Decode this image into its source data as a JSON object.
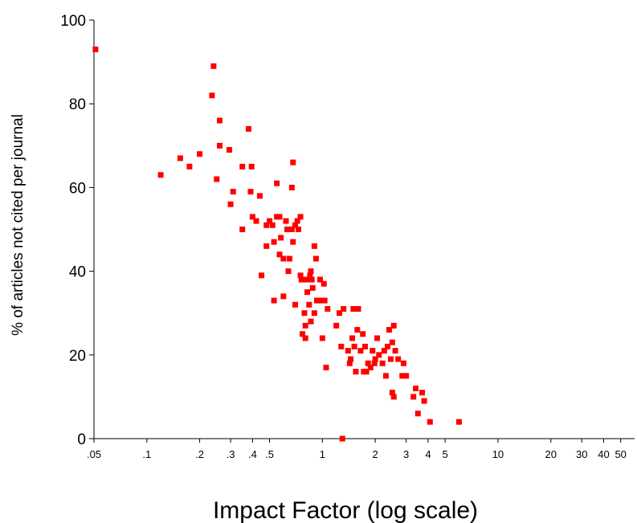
{
  "chart_data": {
    "type": "scatter",
    "title": "",
    "xlabel": "Impact Factor (log scale)",
    "ylabel": "% of articles not cited per journal",
    "x_scale": "log",
    "xlim": [
      0.05,
      60
    ],
    "ylim": [
      0,
      100
    ],
    "grid": false,
    "legend": "none",
    "marker_color": "#ff0000",
    "y_ticks": [
      {
        "value": 0,
        "label": "0"
      },
      {
        "value": 20,
        "label": "20"
      },
      {
        "value": 40,
        "label": "40"
      },
      {
        "value": 60,
        "label": "60"
      },
      {
        "value": 80,
        "label": "80"
      },
      {
        "value": 100,
        "label": "100"
      }
    ],
    "x_ticks": [
      {
        "value": 0.05,
        "label": ".05"
      },
      {
        "value": 0.1,
        "label": ".1"
      },
      {
        "value": 0.2,
        "label": ".2"
      },
      {
        "value": 0.3,
        "label": ".3"
      },
      {
        "value": 0.4,
        "label": ".4"
      },
      {
        "value": 0.5,
        "label": ".5"
      },
      {
        "value": 1,
        "label": "1"
      },
      {
        "value": 2,
        "label": "2"
      },
      {
        "value": 3,
        "label": "3"
      },
      {
        "value": 4,
        "label": "4"
      },
      {
        "value": 5,
        "label": "5"
      },
      {
        "value": 10,
        "label": "10"
      },
      {
        "value": 20,
        "label": "20"
      },
      {
        "value": 30,
        "label": "30"
      },
      {
        "value": 40,
        "label": "40"
      },
      {
        "value": 50,
        "label": "50"
      }
    ],
    "points": [
      [
        0.051,
        93
      ],
      [
        0.12,
        63
      ],
      [
        0.155,
        67
      ],
      [
        0.175,
        65
      ],
      [
        0.2,
        68
      ],
      [
        0.235,
        82
      ],
      [
        0.24,
        89
      ],
      [
        0.25,
        62
      ],
      [
        0.26,
        76
      ],
      [
        0.26,
        70
      ],
      [
        0.295,
        69
      ],
      [
        0.3,
        56
      ],
      [
        0.31,
        59
      ],
      [
        0.35,
        65
      ],
      [
        0.35,
        50
      ],
      [
        0.38,
        74
      ],
      [
        0.39,
        59
      ],
      [
        0.395,
        65
      ],
      [
        0.4,
        53
      ],
      [
        0.42,
        52
      ],
      [
        0.44,
        58
      ],
      [
        0.45,
        39
      ],
      [
        0.48,
        51
      ],
      [
        0.48,
        46
      ],
      [
        0.5,
        52
      ],
      [
        0.52,
        51
      ],
      [
        0.53,
        33
      ],
      [
        0.53,
        47
      ],
      [
        0.55,
        61
      ],
      [
        0.55,
        53
      ],
      [
        0.57,
        53
      ],
      [
        0.57,
        44
      ],
      [
        0.58,
        48
      ],
      [
        0.6,
        34
      ],
      [
        0.6,
        43
      ],
      [
        0.62,
        52
      ],
      [
        0.63,
        50
      ],
      [
        0.64,
        40
      ],
      [
        0.65,
        43
      ],
      [
        0.67,
        60
      ],
      [
        0.67,
        50
      ],
      [
        0.68,
        66
      ],
      [
        0.68,
        47
      ],
      [
        0.7,
        51
      ],
      [
        0.7,
        32
      ],
      [
        0.72,
        52
      ],
      [
        0.73,
        50
      ],
      [
        0.75,
        53
      ],
      [
        0.75,
        39
      ],
      [
        0.76,
        38
      ],
      [
        0.77,
        25
      ],
      [
        0.78,
        38
      ],
      [
        0.79,
        30
      ],
      [
        0.8,
        24
      ],
      [
        0.8,
        27
      ],
      [
        0.82,
        35
      ],
      [
        0.83,
        38
      ],
      [
        0.84,
        32
      ],
      [
        0.85,
        39
      ],
      [
        0.86,
        40
      ],
      [
        0.86,
        28
      ],
      [
        0.87,
        38
      ],
      [
        0.88,
        36
      ],
      [
        0.9,
        46
      ],
      [
        0.9,
        30
      ],
      [
        0.92,
        43
      ],
      [
        0.93,
        33
      ],
      [
        0.95,
        33
      ],
      [
        0.97,
        38
      ],
      [
        0.99,
        33
      ],
      [
        1.0,
        24
      ],
      [
        1.02,
        37
      ],
      [
        1.03,
        33
      ],
      [
        1.05,
        17
      ],
      [
        1.07,
        31
      ],
      [
        1.2,
        27
      ],
      [
        1.25,
        30
      ],
      [
        1.28,
        22
      ],
      [
        1.3,
        0
      ],
      [
        1.32,
        31
      ],
      [
        1.4,
        21
      ],
      [
        1.43,
        18
      ],
      [
        1.45,
        19
      ],
      [
        1.48,
        24
      ],
      [
        1.5,
        31
      ],
      [
        1.52,
        22
      ],
      [
        1.55,
        16
      ],
      [
        1.58,
        26
      ],
      [
        1.6,
        31
      ],
      [
        1.65,
        21
      ],
      [
        1.7,
        25
      ],
      [
        1.72,
        16
      ],
      [
        1.75,
        22
      ],
      [
        1.78,
        16
      ],
      [
        1.82,
        18
      ],
      [
        1.88,
        17
      ],
      [
        1.93,
        21
      ],
      [
        1.98,
        18
      ],
      [
        2.0,
        19
      ],
      [
        2.05,
        24
      ],
      [
        2.1,
        20
      ],
      [
        2.2,
        18
      ],
      [
        2.25,
        21
      ],
      [
        2.3,
        15
      ],
      [
        2.35,
        22
      ],
      [
        2.4,
        26
      ],
      [
        2.45,
        19
      ],
      [
        2.5,
        23
      ],
      [
        2.5,
        11
      ],
      [
        2.55,
        27
      ],
      [
        2.55,
        10
      ],
      [
        2.6,
        21
      ],
      [
        2.7,
        19
      ],
      [
        2.85,
        15
      ],
      [
        2.9,
        18
      ],
      [
        3.0,
        15
      ],
      [
        3.3,
        10
      ],
      [
        3.4,
        12
      ],
      [
        3.5,
        6
      ],
      [
        3.7,
        11
      ],
      [
        3.8,
        9
      ],
      [
        4.1,
        4
      ],
      [
        6.0,
        4
      ]
    ]
  }
}
